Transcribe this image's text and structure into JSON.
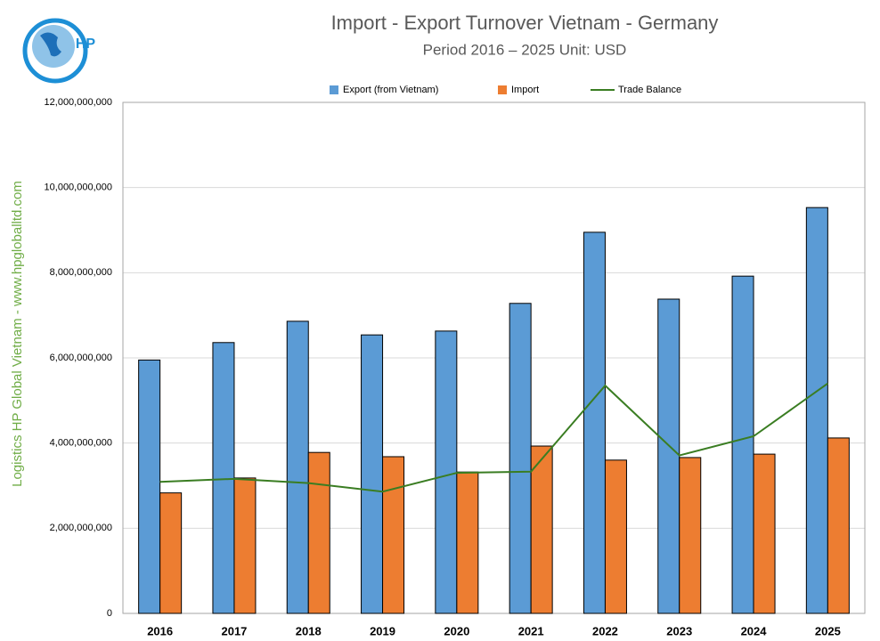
{
  "logo_text": "HP",
  "side_text": "Logistics HP Global Vietnam - www.hpgloballtd.com",
  "chart_data": {
    "type": "bar",
    "title": "Import - Export Turnover Vietnam - Germany",
    "subtitle": "Period 2016 – 2025  Unit: USD",
    "categories": [
      "2016",
      "2017",
      "2018",
      "2019",
      "2020",
      "2021",
      "2022",
      "2023",
      "2024",
      "2025"
    ],
    "series": [
      {
        "name": "Export (from Vietnam)",
        "color": "#5b9bd5",
        "type": "bar",
        "values": [
          5950000000,
          6360000000,
          6860000000,
          6540000000,
          6630000000,
          7280000000,
          8950000000,
          7380000000,
          7920000000,
          9530000000
        ]
      },
      {
        "name": "Import",
        "color": "#ed7d31",
        "type": "bar",
        "values": [
          2830000000,
          3180000000,
          3780000000,
          3680000000,
          3320000000,
          3930000000,
          3600000000,
          3660000000,
          3740000000,
          4120000000
        ]
      },
      {
        "name": "Trade Balance",
        "color": "#3a7d22",
        "type": "line",
        "values": [
          3090000000,
          3160000000,
          3060000000,
          2860000000,
          3300000000,
          3330000000,
          5350000000,
          3710000000,
          4160000000,
          5400000000
        ]
      }
    ],
    "ylim": [
      0,
      12000000000
    ],
    "yticks": [
      0,
      {
        "value": 2000000000,
        "label": "2,000,000,000"
      },
      {
        "value": 4000000000,
        "label": "4,000,000,000"
      },
      {
        "value": 6000000000,
        "label": "6,000,000,000"
      },
      {
        "value": 8000000000,
        "label": "8,000,000,000"
      },
      {
        "value": 10000000000,
        "label": "10,000,000,000"
      },
      {
        "value": 12000000000,
        "label": "12,000,000,000"
      }
    ],
    "grid": true,
    "legend": "top"
  }
}
